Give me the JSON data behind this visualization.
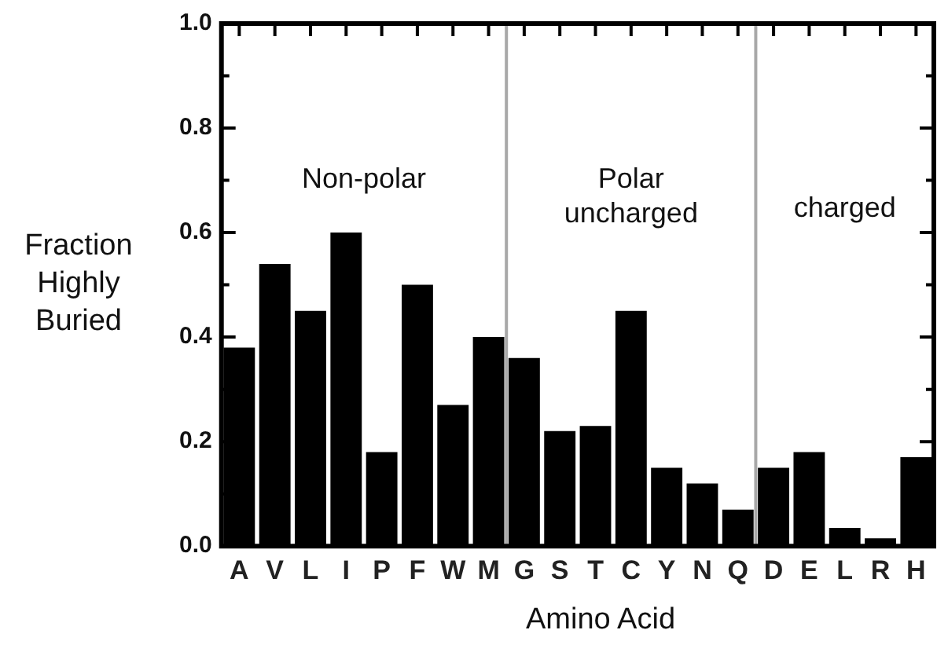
{
  "chart_data": {
    "type": "bar",
    "xlabel": "Amino Acid",
    "ylabel": "Fraction Highly Buried",
    "categories": [
      "A",
      "V",
      "L",
      "I",
      "P",
      "F",
      "W",
      "M",
      "G",
      "S",
      "T",
      "C",
      "Y",
      "N",
      "Q",
      "D",
      "E",
      "L",
      "R",
      "H"
    ],
    "values": [
      0.38,
      0.54,
      0.45,
      0.6,
      0.18,
      0.5,
      0.27,
      0.4,
      0.36,
      0.22,
      0.23,
      0.45,
      0.15,
      0.12,
      0.07,
      0.15,
      0.18,
      0.035,
      0.015,
      0.17
    ],
    "color": "#000000",
    "ylim": [
      0,
      1
    ],
    "yticks": [
      {
        "value": 0,
        "label": "0.0"
      },
      {
        "value": 0.1,
        "label": null
      },
      {
        "value": 0.2,
        "label": "0.2"
      },
      {
        "value": 0.3,
        "label": null
      },
      {
        "value": 0.4,
        "label": "0.4"
      },
      {
        "value": 0.5,
        "label": null
      },
      {
        "value": 0.6,
        "label": "0.6"
      },
      {
        "value": 0.7,
        "label": null
      },
      {
        "value": 0.8,
        "label": "0.8"
      },
      {
        "value": 0.9,
        "label": null
      },
      {
        "value": 1,
        "label": "1.0"
      }
    ],
    "annotations": [
      "Non-polar",
      "Polar uncharged",
      "charged"
    ],
    "grid": false,
    "legend": false
  }
}
